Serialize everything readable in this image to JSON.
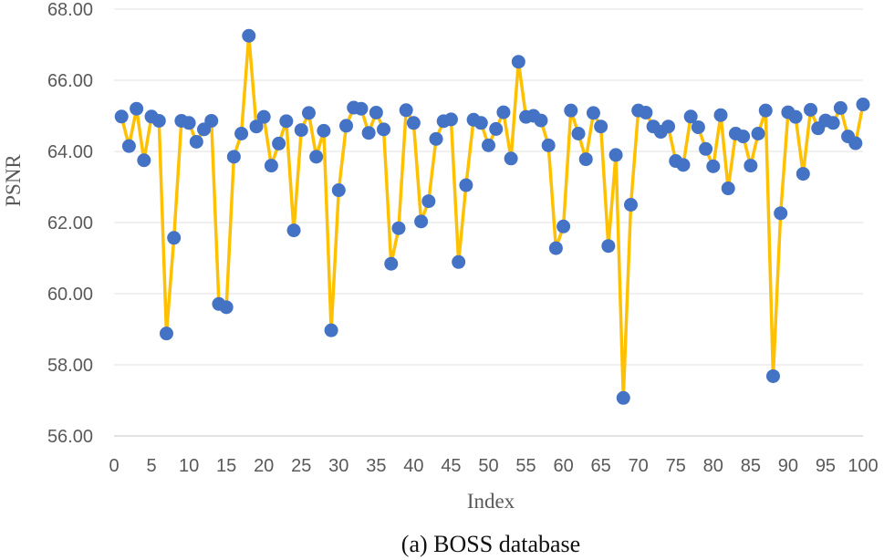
{
  "chart_data": {
    "type": "line",
    "title": "",
    "caption": "(a) BOSS database",
    "xlabel": "Index",
    "ylabel": "PSNR",
    "xlim": [
      0,
      100
    ],
    "ylim": [
      56,
      68
    ],
    "x_ticks": [
      "0",
      "5",
      "10",
      "15",
      "20",
      "25",
      "30",
      "35",
      "40",
      "45",
      "50",
      "55",
      "60",
      "65",
      "70",
      "75",
      "80",
      "85",
      "90",
      "95",
      "100"
    ],
    "y_ticks": [
      "56.00",
      "58.00",
      "60.00",
      "62.00",
      "64.00",
      "66.00",
      "68.00"
    ],
    "line_color": "#FFC000",
    "marker_color": "#4472C4",
    "series": [
      {
        "name": "PSNR",
        "x": [
          1,
          2,
          3,
          4,
          5,
          6,
          7,
          8,
          9,
          10,
          11,
          12,
          13,
          14,
          15,
          16,
          17,
          18,
          19,
          20,
          21,
          22,
          23,
          24,
          25,
          26,
          27,
          28,
          29,
          30,
          31,
          32,
          33,
          34,
          35,
          36,
          37,
          38,
          39,
          40,
          41,
          42,
          43,
          44,
          45,
          46,
          47,
          48,
          49,
          50,
          51,
          52,
          53,
          54,
          55,
          56,
          57,
          58,
          59,
          60,
          61,
          62,
          63,
          64,
          65,
          66,
          67,
          68,
          69,
          70,
          71,
          72,
          73,
          74,
          75,
          76,
          77,
          78,
          79,
          80,
          81,
          82,
          83,
          84,
          85,
          86,
          87,
          88,
          89,
          90,
          91,
          92,
          93,
          94,
          95,
          96,
          97,
          98,
          99,
          100
        ],
        "values": [
          64.98,
          64.15,
          65.2,
          63.75,
          64.98,
          64.86,
          58.88,
          61.57,
          64.86,
          64.8,
          64.27,
          64.62,
          64.86,
          59.71,
          59.62,
          63.85,
          64.5,
          67.25,
          64.7,
          64.97,
          63.6,
          64.22,
          64.85,
          61.78,
          64.6,
          65.08,
          63.85,
          64.58,
          58.97,
          62.91,
          64.72,
          65.23,
          65.2,
          64.52,
          65.09,
          64.62,
          60.84,
          61.84,
          65.16,
          64.8,
          62.03,
          62.6,
          64.35,
          64.85,
          64.9,
          60.89,
          63.05,
          64.89,
          64.8,
          64.17,
          64.63,
          65.1,
          63.8,
          66.52,
          64.97,
          65.0,
          64.87,
          64.17,
          61.28,
          61.89,
          65.15,
          64.5,
          63.78,
          65.08,
          64.7,
          61.34,
          63.9,
          57.07,
          62.5,
          65.15,
          65.09,
          64.7,
          64.55,
          64.7,
          63.73,
          63.62,
          64.98,
          64.68,
          64.07,
          63.58,
          65.02,
          62.96,
          64.5,
          64.42,
          63.6,
          64.5,
          65.15,
          57.68,
          62.26,
          65.1,
          64.97,
          63.37,
          65.17,
          64.65,
          64.87,
          64.8,
          65.22,
          64.42,
          64.23,
          65.32
        ]
      }
    ]
  }
}
